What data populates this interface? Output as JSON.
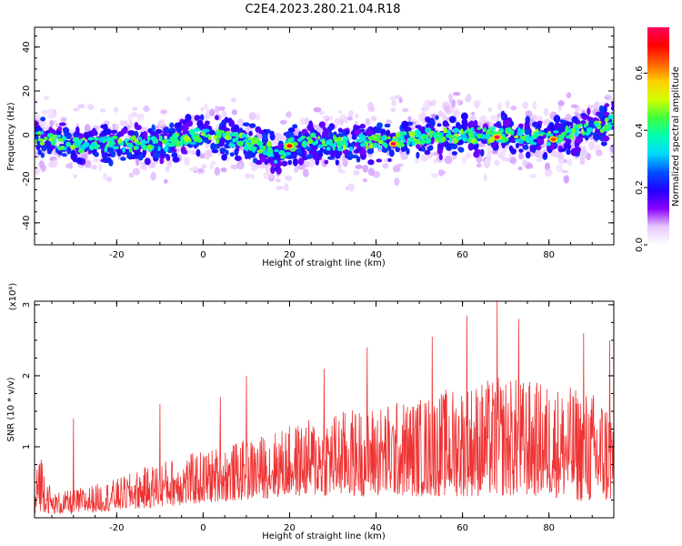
{
  "title": "C2E4.2023.280.21.04.R18",
  "chart_data": [
    {
      "type": "heatmap",
      "xlabel": "Height of straight line (km)",
      "ylabel": "Frequency (Hz)",
      "xlim": [
        -39,
        95
      ],
      "ylim": [
        -50,
        49
      ],
      "xticks": [
        -20,
        0,
        20,
        40,
        60,
        80
      ],
      "yticks": [
        -40,
        -20,
        0,
        20,
        40
      ],
      "colorbar": {
        "label": "Normalized spectral amplitude",
        "range": [
          0.0,
          0.76
        ],
        "ticks": [
          "0.0",
          "0.2",
          "0.4",
          "0.6"
        ],
        "colormap": [
          "#ffffff",
          "#e8c8ff",
          "#8a00ff",
          "#2000ff",
          "#0050ff",
          "#00d8ff",
          "#00ffb0",
          "#40ff40",
          "#d0ff00",
          "#ffd000",
          "#ff6000",
          "#ff0000",
          "#ff0060"
        ]
      },
      "ridge": {
        "x": [
          -39,
          -30,
          -20,
          -10,
          0,
          10,
          15,
          17,
          20,
          25,
          30,
          40,
          50,
          60,
          70,
          80,
          90,
          95
        ],
        "center_hz": [
          0,
          -5,
          -4,
          -4,
          0,
          -3,
          -6,
          -10,
          -5,
          -3,
          -4,
          -3,
          -1,
          0,
          0,
          -2,
          3,
          6
        ]
      },
      "peaks": [
        {
          "x": 20,
          "y": -5,
          "value": 0.55
        },
        {
          "x": 44,
          "y": -4,
          "value": 0.74
        },
        {
          "x": 68,
          "y": -1,
          "value": 0.65
        },
        {
          "x": 81,
          "y": -2,
          "value": 0.5
        }
      ]
    },
    {
      "type": "line",
      "xlabel": "Height of straight line (km)",
      "ylabel": "SNR (10 * v/v)",
      "y_scale_label": "(x10⁴)",
      "y_unit": "x10^4",
      "xlim": [
        -39,
        95
      ],
      "ylim": [
        0,
        3.05
      ],
      "xticks": [
        -20,
        0,
        20,
        40,
        60,
        80
      ],
      "yticks": [
        1,
        2,
        3
      ],
      "color": "#ee3333",
      "envelope": {
        "x": [
          -39,
          -38,
          -35,
          -30,
          -20,
          -10,
          0,
          10,
          20,
          30,
          40,
          50,
          60,
          70,
          80,
          90,
          95
        ],
        "typical_max": [
          0.2,
          1.1,
          0.35,
          0.4,
          0.55,
          0.8,
          0.95,
          1.1,
          1.3,
          1.5,
          1.6,
          1.7,
          1.9,
          2.0,
          1.9,
          1.8,
          1.7
        ],
        "typical_min": [
          0.0,
          0.1,
          0.05,
          0.05,
          0.1,
          0.15,
          0.2,
          0.25,
          0.3,
          0.3,
          0.3,
          0.3,
          0.3,
          0.3,
          0.3,
          0.2,
          0.2
        ]
      },
      "peaks": [
        {
          "x": -30,
          "y": 1.4
        },
        {
          "x": -10,
          "y": 1.6
        },
        {
          "x": 4,
          "y": 1.7
        },
        {
          "x": 10,
          "y": 2.0
        },
        {
          "x": 28,
          "y": 2.1
        },
        {
          "x": 38,
          "y": 2.4
        },
        {
          "x": 53,
          "y": 2.55
        },
        {
          "x": 61,
          "y": 2.85
        },
        {
          "x": 68,
          "y": 3.05
        },
        {
          "x": 73,
          "y": 2.8
        },
        {
          "x": 88,
          "y": 2.6
        },
        {
          "x": 94,
          "y": 2.5
        }
      ]
    }
  ]
}
